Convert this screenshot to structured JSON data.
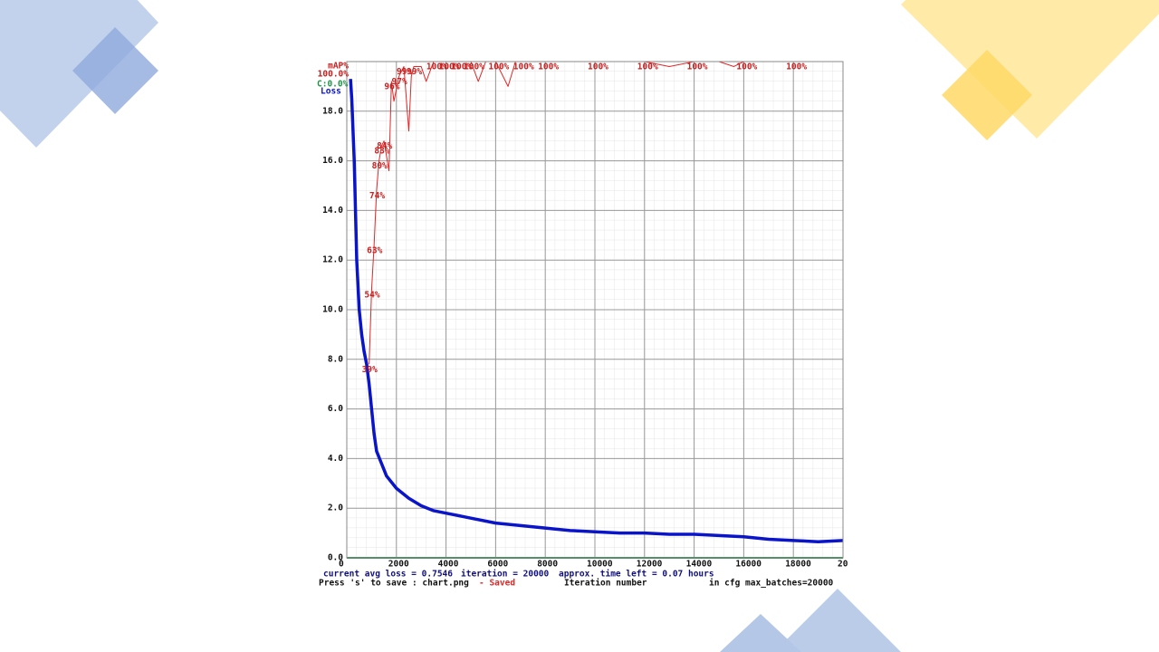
{
  "chart_data": {
    "type": "line",
    "xlabel": "Iteration number",
    "xlim": [
      0,
      20000
    ],
    "xticks": [
      0,
      2000,
      4000,
      6000,
      8000,
      10000,
      12000,
      14000,
      16000,
      18000,
      {
        "value": 20000,
        "label": "20"
      }
    ],
    "ylim": [
      0,
      20
    ],
    "yticks": [
      {
        "value": 0,
        "label": "0.0"
      },
      {
        "value": 2,
        "label": "2.0"
      },
      {
        "value": 4,
        "label": "4.0"
      },
      {
        "value": 6,
        "label": "6.0"
      },
      {
        "value": 8,
        "label": "8.0"
      },
      {
        "value": 10,
        "label": "10.0"
      },
      {
        "value": 12,
        "label": "12.0"
      },
      {
        "value": 14,
        "label": "14.0"
      },
      {
        "value": 16,
        "label": "16.0"
      },
      {
        "value": 18,
        "label": "18.0"
      }
    ],
    "y2lim": [
      0,
      100
    ],
    "y2ticks": [
      {
        "value": 100,
        "label": "100.0%"
      }
    ],
    "grid": true,
    "series": [
      {
        "name": "Loss",
        "color": "#0a14c8",
        "x": [
          150,
          200,
          300,
          400,
          500,
          600,
          700,
          800,
          900,
          1000,
          1100,
          1200,
          1400,
          1600,
          2000,
          2500,
          3000,
          3500,
          4000,
          5000,
          6000,
          7000,
          8000,
          9000,
          10000,
          11000,
          12000,
          13000,
          14000,
          15000,
          16000,
          17000,
          18000,
          19000,
          20000
        ],
        "values": [
          19.3,
          18.5,
          16.0,
          12.0,
          10.0,
          9.0,
          8.3,
          7.8,
          7.0,
          6.0,
          5.0,
          4.3,
          3.8,
          3.3,
          2.8,
          2.4,
          2.1,
          1.9,
          1.8,
          1.6,
          1.4,
          1.3,
          1.2,
          1.1,
          1.05,
          1.0,
          1.0,
          0.95,
          0.95,
          0.9,
          0.85,
          0.75,
          0.7,
          0.65,
          0.7
        ]
      },
      {
        "name": "mAP%",
        "color": "#e02828",
        "axis": "y2",
        "x": [
          900,
          1000,
          1100,
          1200,
          1300,
          1400,
          1500,
          1700,
          1800,
          1900,
          2100,
          2300,
          2500,
          2600,
          2700,
          3000,
          3200,
          3500,
          4000,
          4500,
          5000,
          5300,
          5600,
          6000,
          6500,
          6800,
          7000,
          8000,
          10000,
          12000,
          13000,
          14000,
          15000,
          15600,
          16000,
          18000,
          20000
        ],
        "values": [
          39,
          54,
          63,
          74,
          80,
          83,
          84,
          78,
          96,
          92,
          97,
          99,
          86,
          97,
          99,
          99,
          96,
          100,
          100,
          100,
          100,
          96,
          100,
          100,
          95,
          100,
          100,
          100,
          100,
          100,
          99,
          100,
          100,
          99,
          100,
          100,
          100
        ],
        "value_labels": [
          "39%",
          "54%",
          "63%",
          "74%",
          "80%",
          "83%",
          "84%",
          null,
          "96%",
          null,
          "97%",
          "99%",
          null,
          null,
          "99%",
          null,
          null,
          "100%",
          "100%",
          "100%",
          "100%",
          null,
          null,
          "100%",
          null,
          null,
          "100%",
          "100%",
          "100%",
          "100%",
          null,
          "100%",
          null,
          null,
          "100%",
          "100%",
          null
        ]
      },
      {
        "name": "C:0.0%",
        "color": "#1e9646",
        "axis": "y2",
        "x": [
          0,
          20000
        ],
        "values": [
          0,
          0
        ]
      }
    ],
    "annotations": [
      "current avg loss = 0.7546",
      "iteration = 20000",
      "approx. time left = 0.07 hours",
      "Press 's' to save : chart.png",
      "- Saved",
      "in cfg max_batches=20000"
    ]
  }
}
